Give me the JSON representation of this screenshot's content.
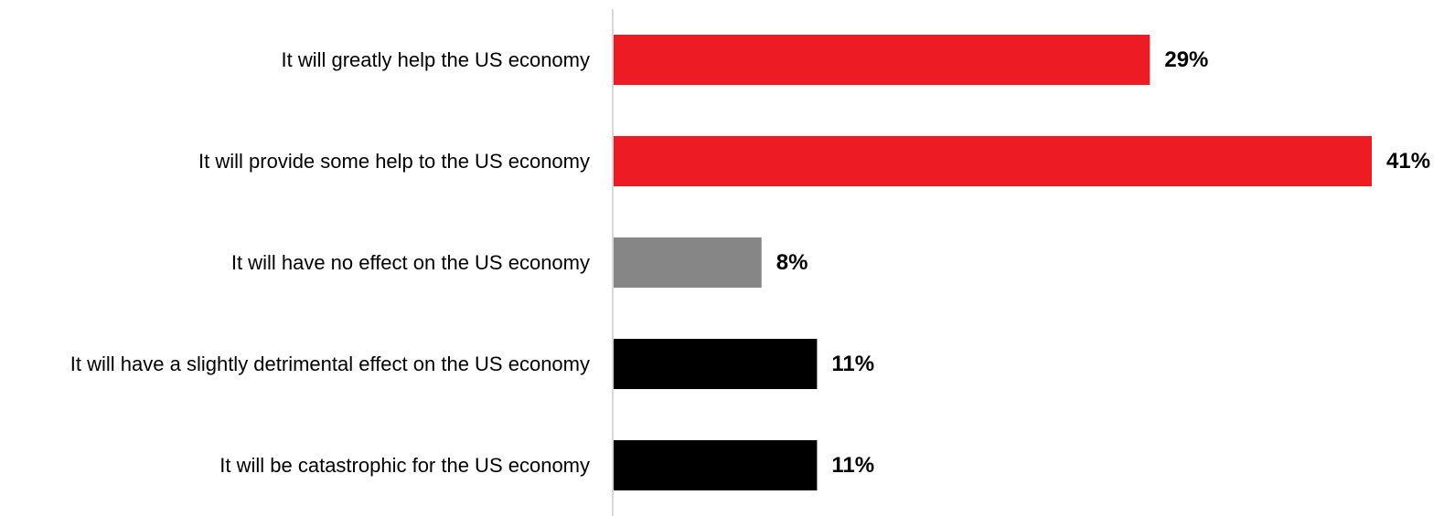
{
  "chart_data": {
    "type": "bar",
    "orientation": "horizontal",
    "categories": [
      "It will greatly help the US economy",
      "It will provide some help to the US economy",
      "It will have no effect on the US economy",
      "It will have a slightly detrimental effect on the US economy",
      "It will be catastrophic for the US economy"
    ],
    "values": [
      29,
      41,
      8,
      11,
      11
    ],
    "value_labels": [
      "29%",
      "41%",
      "8%",
      "11%",
      "11%"
    ],
    "bar_colors": [
      "#ED1C24",
      "#ED1C24",
      "#868686",
      "#000000",
      "#000000"
    ],
    "unit": "%",
    "xlim": [
      0,
      41
    ],
    "grid": false,
    "legend": "none"
  }
}
